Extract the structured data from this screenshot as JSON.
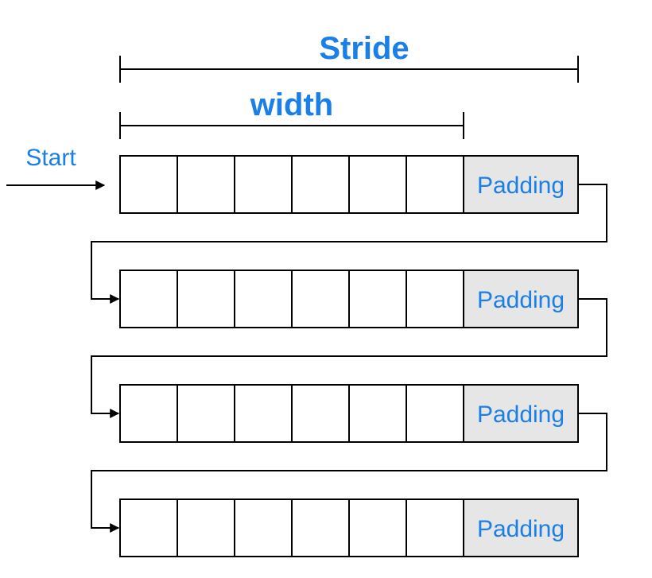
{
  "labels": {
    "stride": "Stride",
    "width": "width",
    "start": "Start",
    "padding": "Padding"
  },
  "layout": {
    "rows": 4,
    "data_cells_per_row": 6,
    "padding_cells_per_row": 1
  },
  "colors": {
    "label": "#1a7fe6",
    "line": "#000000",
    "cell": "#ffffff",
    "padding_fill": "#e6e6e6"
  }
}
